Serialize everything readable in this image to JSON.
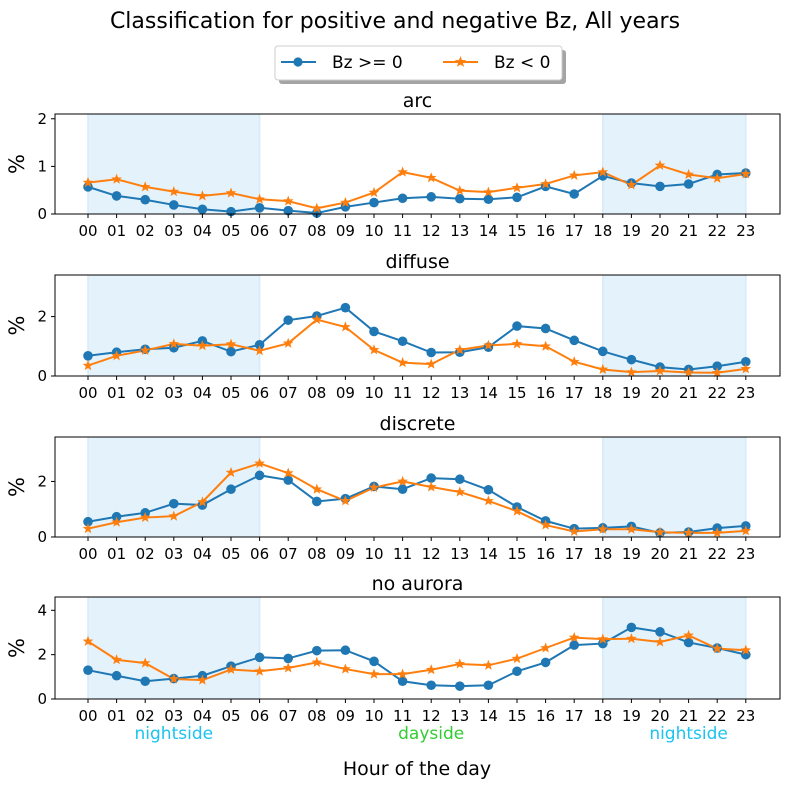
{
  "figure": {
    "title": "Classification for positive and negative Bz, All years",
    "xlabel": "Hour of the day",
    "region_labels": [
      {
        "text": "nightside",
        "hour": 3,
        "color": "#1ac3f0"
      },
      {
        "text": "dayside",
        "hour": 12,
        "color": "#32cd32"
      },
      {
        "text": "nightside",
        "hour": 21,
        "color": "#1ac3f0"
      }
    ],
    "shaded_ranges": [
      [
        0,
        6
      ],
      [
        18,
        23
      ]
    ],
    "shade_color": "#e3f2fb"
  },
  "legend": {
    "placement": "top-center",
    "entries": [
      {
        "label": "Bz >= 0",
        "color": "#1f77b4",
        "marker": "circle"
      },
      {
        "label": "Bz < 0",
        "color": "#ff7f0e",
        "marker": "star"
      }
    ]
  },
  "chart_data": [
    {
      "type": "line",
      "title": "arc",
      "ylabel": "%",
      "xlabel": "",
      "x": [
        "00",
        "01",
        "02",
        "03",
        "04",
        "05",
        "06",
        "07",
        "08",
        "09",
        "10",
        "11",
        "12",
        "13",
        "14",
        "15",
        "16",
        "17",
        "18",
        "19",
        "20",
        "21",
        "22",
        "23"
      ],
      "ylim": [
        0,
        2.1
      ],
      "yticks": [
        0,
        1,
        2
      ],
      "series": [
        {
          "name": "Bz >= 0",
          "color": "#1f77b4",
          "marker": "circle",
          "values": [
            0.57,
            0.38,
            0.3,
            0.19,
            0.1,
            0.05,
            0.13,
            0.07,
            0.02,
            0.15,
            0.24,
            0.33,
            0.36,
            0.32,
            0.31,
            0.35,
            0.58,
            0.42,
            0.8,
            0.65,
            0.58,
            0.63,
            0.83,
            0.86
          ]
        },
        {
          "name": "Bz < 0",
          "color": "#ff7f0e",
          "marker": "star",
          "values": [
            0.66,
            0.73,
            0.57,
            0.47,
            0.38,
            0.44,
            0.31,
            0.27,
            0.12,
            0.24,
            0.45,
            0.88,
            0.76,
            0.49,
            0.46,
            0.55,
            0.63,
            0.81,
            0.88,
            0.61,
            1.02,
            0.83,
            0.75,
            0.84
          ]
        }
      ]
    },
    {
      "type": "line",
      "title": "diffuse",
      "ylabel": "%",
      "xlabel": "",
      "x": [
        "00",
        "01",
        "02",
        "03",
        "04",
        "05",
        "06",
        "07",
        "08",
        "09",
        "10",
        "11",
        "12",
        "13",
        "14",
        "15",
        "16",
        "17",
        "18",
        "19",
        "20",
        "21",
        "22",
        "23"
      ],
      "ylim": [
        0,
        3.4
      ],
      "yticks": [
        0,
        2
      ],
      "series": [
        {
          "name": "Bz >= 0",
          "color": "#1f77b4",
          "marker": "circle",
          "values": [
            0.68,
            0.8,
            0.9,
            0.95,
            1.18,
            0.82,
            1.05,
            1.88,
            2.02,
            2.3,
            1.5,
            1.17,
            0.79,
            0.8,
            0.97,
            1.68,
            1.6,
            1.2,
            0.83,
            0.55,
            0.3,
            0.22,
            0.33,
            0.48
          ]
        },
        {
          "name": "Bz < 0",
          "color": "#ff7f0e",
          "marker": "star",
          "values": [
            0.35,
            0.68,
            0.86,
            1.08,
            1.02,
            1.07,
            0.85,
            1.1,
            1.9,
            1.65,
            0.88,
            0.45,
            0.4,
            0.88,
            1.03,
            1.08,
            1.0,
            0.48,
            0.22,
            0.13,
            0.17,
            0.12,
            0.11,
            0.24
          ]
        }
      ]
    },
    {
      "type": "line",
      "title": "discrete",
      "ylabel": "%",
      "xlabel": "",
      "x": [
        "00",
        "01",
        "02",
        "03",
        "04",
        "05",
        "06",
        "07",
        "08",
        "09",
        "10",
        "11",
        "12",
        "13",
        "14",
        "15",
        "16",
        "17",
        "18",
        "19",
        "20",
        "21",
        "22",
        "23"
      ],
      "ylim": [
        0,
        3.6
      ],
      "yticks": [
        0,
        2
      ],
      "series": [
        {
          "name": "Bz >= 0",
          "color": "#1f77b4",
          "marker": "circle",
          "values": [
            0.55,
            0.73,
            0.87,
            1.2,
            1.15,
            1.72,
            2.22,
            2.05,
            1.28,
            1.38,
            1.82,
            1.72,
            2.12,
            2.08,
            1.7,
            1.08,
            0.58,
            0.3,
            0.33,
            0.38,
            0.15,
            0.18,
            0.32,
            0.4
          ]
        },
        {
          "name": "Bz < 0",
          "color": "#ff7f0e",
          "marker": "star",
          "values": [
            0.3,
            0.53,
            0.7,
            0.75,
            1.26,
            2.32,
            2.65,
            2.3,
            1.72,
            1.3,
            1.78,
            2.0,
            1.8,
            1.62,
            1.3,
            0.93,
            0.43,
            0.2,
            0.28,
            0.28,
            0.17,
            0.15,
            0.15,
            0.22
          ]
        }
      ]
    },
    {
      "type": "line",
      "title": "no aurora",
      "ylabel": "%",
      "xlabel": "Hour of the day",
      "x": [
        "00",
        "01",
        "02",
        "03",
        "04",
        "05",
        "06",
        "07",
        "08",
        "09",
        "10",
        "11",
        "12",
        "13",
        "14",
        "15",
        "16",
        "17",
        "18",
        "19",
        "20",
        "21",
        "22",
        "23"
      ],
      "ylim": [
        0,
        4.6
      ],
      "yticks": [
        0,
        2,
        4
      ],
      "series": [
        {
          "name": "Bz >= 0",
          "color": "#1f77b4",
          "marker": "circle",
          "values": [
            1.3,
            1.05,
            0.8,
            0.92,
            1.05,
            1.48,
            1.88,
            1.83,
            2.18,
            2.2,
            1.7,
            0.8,
            0.62,
            0.58,
            0.62,
            1.25,
            1.65,
            2.43,
            2.5,
            3.23,
            3.03,
            2.55,
            2.3,
            2.0
          ]
        },
        {
          "name": "Bz < 0",
          "color": "#ff7f0e",
          "marker": "star",
          "values": [
            2.6,
            1.77,
            1.62,
            0.9,
            0.85,
            1.33,
            1.25,
            1.4,
            1.65,
            1.35,
            1.12,
            1.12,
            1.32,
            1.58,
            1.52,
            1.82,
            2.3,
            2.77,
            2.7,
            2.72,
            2.57,
            2.87,
            2.27,
            2.2
          ]
        }
      ]
    }
  ]
}
